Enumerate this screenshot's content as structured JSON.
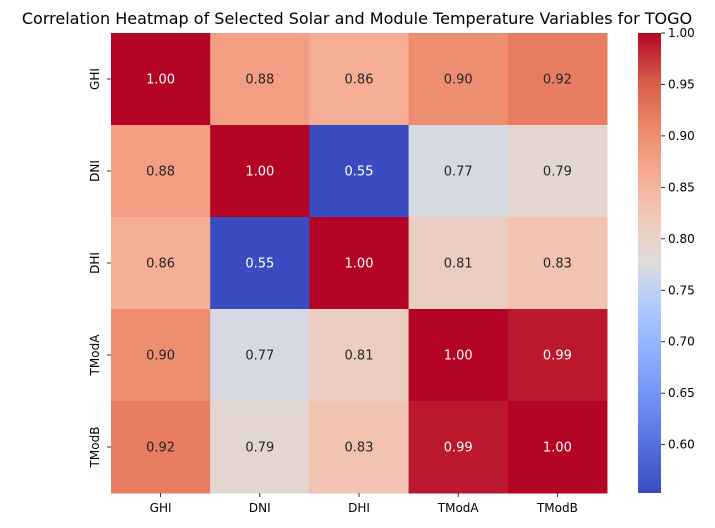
{
  "chart_data": {
    "type": "heatmap",
    "title": "Correlation Heatmap of Selected Solar and Module Temperature Variables for TOGO",
    "x_categories": [
      "GHI",
      "DNI",
      "DHI",
      "TModA",
      "TModB"
    ],
    "y_categories": [
      "GHI",
      "DNI",
      "DHI",
      "TModA",
      "TModB"
    ],
    "values": [
      [
        1.0,
        0.88,
        0.86,
        0.9,
        0.92
      ],
      [
        0.88,
        1.0,
        0.55,
        0.77,
        0.79
      ],
      [
        0.86,
        0.55,
        1.0,
        0.81,
        0.83
      ],
      [
        0.9,
        0.77,
        0.81,
        1.0,
        0.99
      ],
      [
        0.92,
        0.79,
        0.83,
        0.99,
        1.0
      ]
    ],
    "cell_labels": [
      [
        "1.00",
        "0.88",
        "0.86",
        "0.90",
        "0.92"
      ],
      [
        "0.88",
        "1.00",
        "0.55",
        "0.77",
        "0.79"
      ],
      [
        "0.86",
        "0.55",
        "1.00",
        "0.81",
        "0.83"
      ],
      [
        "0.90",
        "0.77",
        "0.81",
        "1.00",
        "0.99"
      ],
      [
        "0.92",
        "0.79",
        "0.83",
        "0.99",
        "1.00"
      ]
    ],
    "colormap": "coolwarm",
    "vmin": 0.553,
    "vmax": 1.0,
    "colorbar_ticks": [
      "0.60",
      "0.65",
      "0.70",
      "0.75",
      "0.80",
      "0.85",
      "0.90",
      "0.95",
      "1.00"
    ],
    "colorbar_tick_values": [
      0.6,
      0.65,
      0.7,
      0.75,
      0.8,
      0.85,
      0.9,
      0.95,
      1.0
    ],
    "colorbar_position": "right"
  }
}
